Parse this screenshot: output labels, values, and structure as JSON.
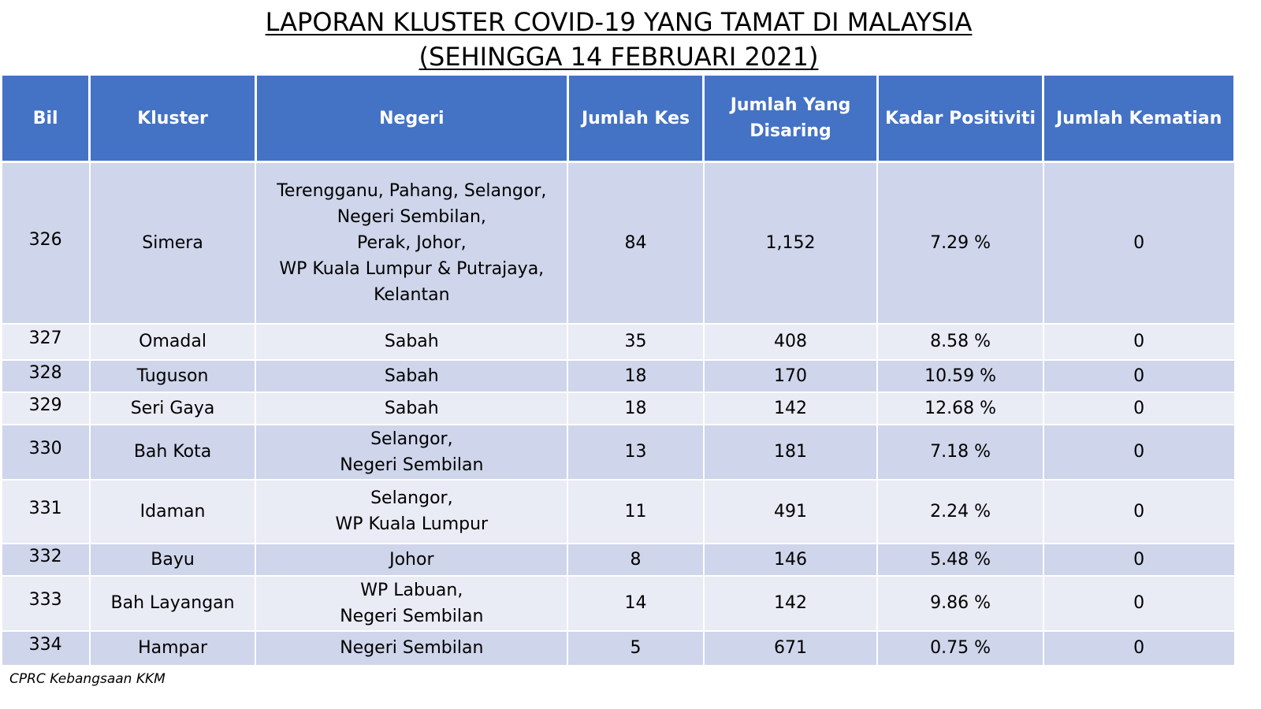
{
  "title": {
    "line1": "LAPORAN KLUSTER COVID-19 YANG TAMAT DI MALAYSIA",
    "line2": "(SEHINGGA 14 FEBRUARI 2021)"
  },
  "table": {
    "headers": {
      "bil": "Bil",
      "kluster": "Kluster",
      "negeri": "Negeri",
      "jumlah_kes": "Jumlah Kes",
      "jumlah_disaring": "Jumlah Yang Disaring",
      "kadar_positiviti": "Kadar Positiviti",
      "jumlah_kematian": "Jumlah Kematian"
    },
    "rows": [
      {
        "bil": "326",
        "kluster": "Simera",
        "negeri_lines": [
          "Terengganu, Pahang, Selangor,",
          "Negeri Sembilan,",
          "Perak, Johor,",
          "WP Kuala Lumpur & Putrajaya,",
          "Kelantan"
        ],
        "jumlah_kes": "84",
        "jumlah_disaring": "1,152",
        "kadar_positiviti": "7.29 %",
        "jumlah_kematian": "0"
      },
      {
        "bil": "327",
        "kluster": "Omadal",
        "negeri_lines": [
          "Sabah"
        ],
        "jumlah_kes": "35",
        "jumlah_disaring": "408",
        "kadar_positiviti": "8.58 %",
        "jumlah_kematian": "0"
      },
      {
        "bil": "328",
        "kluster": "Tuguson",
        "negeri_lines": [
          "Sabah"
        ],
        "jumlah_kes": "18",
        "jumlah_disaring": "170",
        "kadar_positiviti": "10.59 %",
        "jumlah_kematian": "0"
      },
      {
        "bil": "329",
        "kluster": "Seri Gaya",
        "negeri_lines": [
          "Sabah"
        ],
        "jumlah_kes": "18",
        "jumlah_disaring": "142",
        "kadar_positiviti": "12.68 %",
        "jumlah_kematian": "0"
      },
      {
        "bil": "330",
        "kluster": "Bah Kota",
        "negeri_lines": [
          "Selangor,",
          "Negeri Sembilan"
        ],
        "jumlah_kes": "13",
        "jumlah_disaring": "181",
        "kadar_positiviti": "7.18 %",
        "jumlah_kematian": "0"
      },
      {
        "bil": "331",
        "kluster": "Idaman",
        "negeri_lines": [
          "Selangor,",
          "WP Kuala Lumpur"
        ],
        "jumlah_kes": "11",
        "jumlah_disaring": "491",
        "kadar_positiviti": "2.24 %",
        "jumlah_kematian": "0"
      },
      {
        "bil": "332",
        "kluster": "Bayu",
        "negeri_lines": [
          "Johor"
        ],
        "jumlah_kes": "8",
        "jumlah_disaring": "146",
        "kadar_positiviti": "5.48 %",
        "jumlah_kematian": "0"
      },
      {
        "bil": "333",
        "kluster": "Bah Layangan",
        "negeri_lines": [
          "WP Labuan,",
          "Negeri Sembilan"
        ],
        "jumlah_kes": "14",
        "jumlah_disaring": "142",
        "kadar_positiviti": "9.86 %",
        "jumlah_kematian": "0"
      },
      {
        "bil": "334",
        "kluster": "Hampar",
        "negeri_lines": [
          "Negeri Sembilan"
        ],
        "jumlah_kes": "5",
        "jumlah_disaring": "671",
        "kadar_positiviti": "0.75 %",
        "jumlah_kematian": "0"
      }
    ]
  },
  "footer": {
    "source": "CPRC Kebangsaan KKM"
  },
  "colors": {
    "header_bg": "#4472c4",
    "row_dark": "#cfd5ea",
    "row_light": "#e9ebf5"
  }
}
